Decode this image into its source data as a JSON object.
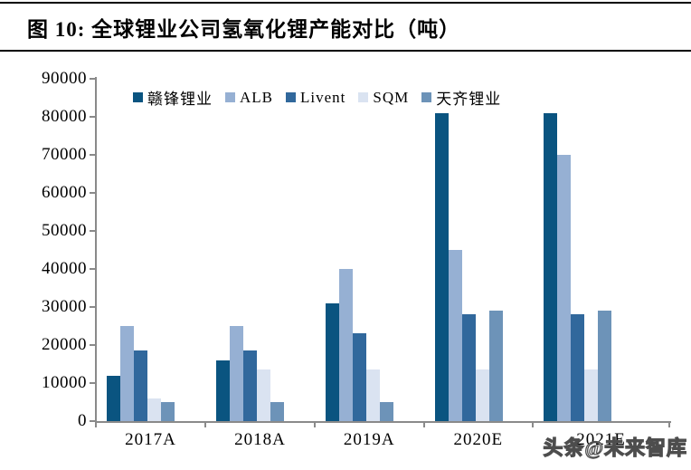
{
  "page": {
    "title": "图 10:  全球锂业公司氢氧化锂产能对比（吨）",
    "watermark": "头条@未来智库"
  },
  "chart_data": {
    "type": "bar",
    "title": "全球锂业公司氢氧化锂产能对比（吨）",
    "categories": [
      "2017A",
      "2018A",
      "2019A",
      "2020E",
      "2021E"
    ],
    "series": [
      {
        "id": "ganfeng",
        "name": "赣锋锂业",
        "color": "#0A5480",
        "values": [
          12000,
          16000,
          31000,
          81000,
          81000
        ]
      },
      {
        "id": "alb",
        "name": "ALB",
        "color": "#96B0D3",
        "values": [
          25000,
          25000,
          40000,
          45000,
          70000
        ]
      },
      {
        "id": "livent",
        "name": "Livent",
        "color": "#31689C",
        "values": [
          18500,
          18500,
          23000,
          28000,
          28000
        ]
      },
      {
        "id": "sqm",
        "name": "SQM",
        "color": "#DAE3F1",
        "values": [
          6000,
          13500,
          13500,
          13500,
          13500
        ]
      },
      {
        "id": "tianqi",
        "name": "天齐锂业",
        "color": "#6D93B8",
        "values": [
          5000,
          5000,
          5000,
          29000,
          29000
        ]
      }
    ],
    "xlabel": "",
    "ylabel": "",
    "ylim": [
      0,
      90000
    ],
    "ytick_step": 10000,
    "yticks": [
      0,
      10000,
      20000,
      30000,
      40000,
      50000,
      60000,
      70000,
      80000,
      90000
    ],
    "legend_position": "top",
    "grid": false,
    "axis_color": "#8a8a8a",
    "last_category_label_hidden_by_watermark": true
  }
}
